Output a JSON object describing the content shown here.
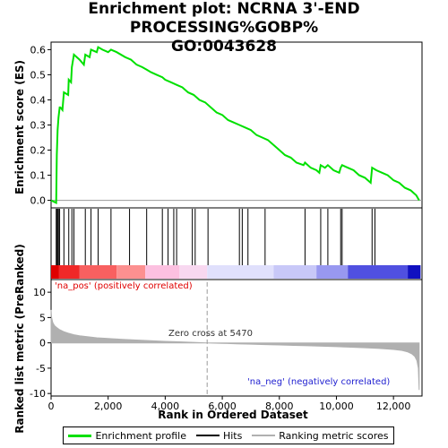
{
  "title": "Enrichment plot: NCRNA 3'-END PROCESSING%GOBP%\nGO:0043628",
  "chart_data": [
    {
      "type": "line",
      "panel": "enrichment-score",
      "ylabel": "Enrichment score (ES)",
      "ylim": [
        -0.03,
        0.63
      ],
      "yticks": [
        0.0,
        0.1,
        0.2,
        0.3,
        0.4,
        0.5,
        0.6
      ],
      "xlim": [
        0,
        13000
      ],
      "series": [
        {
          "name": "Enrichment profile",
          "color": "#00e000",
          "x": [
            0,
            180,
            200,
            230,
            260,
            300,
            330,
            400,
            450,
            600,
            620,
            700,
            730,
            800,
            1000,
            1150,
            1200,
            1350,
            1400,
            1600,
            1650,
            1800,
            2000,
            2100,
            2300,
            2600,
            2800,
            3000,
            3200,
            3350,
            3500,
            3700,
            3900,
            4000,
            4200,
            4400,
            4600,
            4800,
            5000,
            5200,
            5400,
            5600,
            5800,
            6000,
            6200,
            6400,
            6600,
            6800,
            7000,
            7200,
            7400,
            7600,
            7800,
            8000,
            8200,
            8400,
            8600,
            8850,
            8900,
            9100,
            9300,
            9400,
            9450,
            9600,
            9700,
            9900,
            10100,
            10150,
            10200,
            10400,
            10600,
            10800,
            11000,
            11200,
            11250,
            11400,
            11600,
            11800,
            12000,
            12200,
            12400,
            12600,
            12800,
            12900
          ],
          "y": [
            0.0,
            -0.01,
            0.18,
            0.28,
            0.33,
            0.37,
            0.37,
            0.36,
            0.43,
            0.42,
            0.48,
            0.47,
            0.53,
            0.58,
            0.56,
            0.54,
            0.58,
            0.57,
            0.6,
            0.59,
            0.61,
            0.6,
            0.59,
            0.6,
            0.59,
            0.57,
            0.56,
            0.54,
            0.53,
            0.52,
            0.51,
            0.5,
            0.49,
            0.48,
            0.47,
            0.46,
            0.45,
            0.43,
            0.42,
            0.4,
            0.39,
            0.37,
            0.35,
            0.34,
            0.32,
            0.31,
            0.3,
            0.29,
            0.28,
            0.26,
            0.25,
            0.24,
            0.22,
            0.2,
            0.18,
            0.17,
            0.15,
            0.14,
            0.15,
            0.13,
            0.12,
            0.11,
            0.14,
            0.13,
            0.14,
            0.12,
            0.11,
            0.13,
            0.14,
            0.13,
            0.12,
            0.1,
            0.09,
            0.07,
            0.13,
            0.12,
            0.11,
            0.1,
            0.08,
            0.07,
            0.05,
            0.04,
            0.02,
            0.0
          ]
        }
      ],
      "grid": false
    },
    {
      "type": "scatter",
      "panel": "hits",
      "series": [
        {
          "name": "Hits",
          "color": "#000000",
          "x": [
            180,
            200,
            230,
            260,
            300,
            450,
            620,
            730,
            800,
            1200,
            1400,
            1650,
            2100,
            2750,
            3350,
            3900,
            4100,
            4300,
            4400,
            4950,
            5050,
            5500,
            6600,
            6700,
            6900,
            7500,
            8900,
            9450,
            9700,
            10150,
            10200,
            11250,
            11350
          ]
        }
      ]
    },
    {
      "type": "area",
      "panel": "ranked-metric",
      "ylabel": "Ranked list metric (PreRanked)",
      "xlabel": "Rank in Ordered Dataset",
      "xlim": [
        0,
        13000
      ],
      "ylim": [
        -10.5,
        12.5
      ],
      "yticks": [
        -10,
        -5,
        0,
        5,
        10
      ],
      "xticks": [
        0,
        2000,
        4000,
        6000,
        8000,
        10000,
        12000
      ],
      "xtick_labels": [
        "0",
        "2,000",
        "4,000",
        "6,000",
        "8,000",
        "10,000",
        "12,000"
      ],
      "series": [
        {
          "name": "Ranking metric scores",
          "color": "#b0b0b0",
          "x": [
            0,
            20,
            60,
            120,
            200,
            300,
            450,
            600,
            800,
            1000,
            1300,
            1600,
            2000,
            2500,
            3000,
            3500,
            4000,
            4500,
            5000,
            5470,
            6000,
            6500,
            7000,
            7500,
            8000,
            8500,
            9000,
            9500,
            10000,
            10500,
            11000,
            11500,
            12000,
            12300,
            12500,
            12650,
            12750,
            12820,
            12870,
            12900
          ],
          "y": [
            6.5,
            5.0,
            4.0,
            3.4,
            3.0,
            2.6,
            2.2,
            1.9,
            1.6,
            1.4,
            1.2,
            1.0,
            0.85,
            0.7,
            0.55,
            0.42,
            0.3,
            0.2,
            0.1,
            0.0,
            -0.1,
            -0.18,
            -0.26,
            -0.34,
            -0.42,
            -0.5,
            -0.58,
            -0.66,
            -0.75,
            -0.85,
            -0.97,
            -1.1,
            -1.3,
            -1.5,
            -1.8,
            -2.2,
            -2.7,
            -3.5,
            -5.0,
            -9.3
          ]
        }
      ],
      "annotations": {
        "zero_cross_label": "Zero cross at 5470",
        "zero_cross_x": 5470,
        "pos_label": "'na_pos' (positively correlated)",
        "neg_label": "'na_neg' (negatively correlated)",
        "pos_color": "#e00000",
        "neg_color": "#2020d0"
      }
    }
  ],
  "heatmap_bar": {
    "segments": [
      {
        "x0": 0,
        "x1": 280,
        "color": "#e00000"
      },
      {
        "x0": 280,
        "x1": 1000,
        "color": "#f02828"
      },
      {
        "x0": 1000,
        "x1": 2300,
        "color": "#f86060"
      },
      {
        "x0": 2300,
        "x1": 3300,
        "color": "#fc9090"
      },
      {
        "x0": 3300,
        "x1": 4500,
        "color": "#fcc0e0"
      },
      {
        "x0": 4500,
        "x1": 5470,
        "color": "#f8d8f0"
      },
      {
        "x0": 5470,
        "x1": 7800,
        "color": "#e0e0fc"
      },
      {
        "x0": 7800,
        "x1": 9300,
        "color": "#c8c8f8"
      },
      {
        "x0": 9300,
        "x1": 10400,
        "color": "#9898f0"
      },
      {
        "x0": 10400,
        "x1": 12500,
        "color": "#5050e0"
      },
      {
        "x0": 12500,
        "x1": 12950,
        "color": "#1010c0"
      }
    ]
  },
  "legend": {
    "items": [
      {
        "label": "Enrichment profile",
        "color": "#00e000"
      },
      {
        "label": "Hits",
        "color": "#000000"
      },
      {
        "label": "Ranking metric scores",
        "color": "#b0b0b0"
      }
    ]
  }
}
